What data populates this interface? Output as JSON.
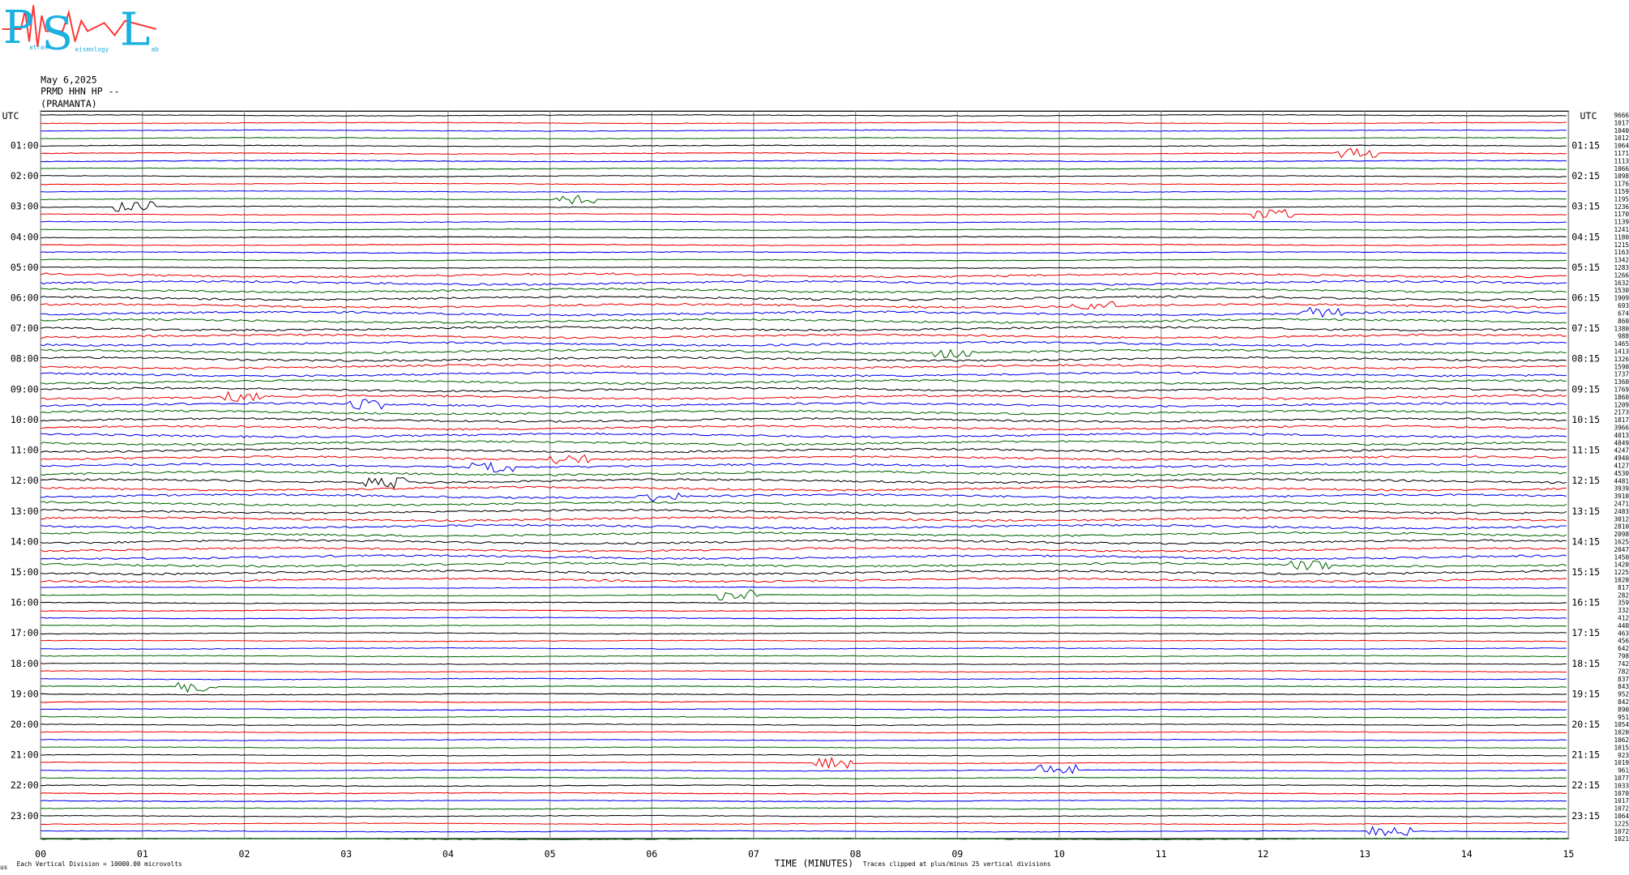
{
  "header": {
    "logo": {
      "letters": [
        "P",
        "S",
        "L"
      ],
      "words": [
        "atras",
        "eismology",
        "ab"
      ]
    },
    "date": "May 6,2025",
    "station": "PRMD HHN HP --",
    "site": "(PRAMANTA)"
  },
  "left_axis": {
    "title": "UTC",
    "labels": [
      "01:00",
      "02:00",
      "03:00",
      "04:00",
      "05:00",
      "06:00",
      "07:00",
      "08:00",
      "09:00",
      "10:00",
      "11:00",
      "12:00",
      "13:00",
      "14:00",
      "15:00",
      "16:00",
      "17:00",
      "18:00",
      "19:00",
      "20:00",
      "21:00",
      "22:00",
      "23:00"
    ]
  },
  "right_axis": {
    "title": "UTC",
    "labels": [
      "01:15",
      "02:15",
      "03:15",
      "04:15",
      "05:15",
      "06:15",
      "07:15",
      "08:15",
      "09:15",
      "10:15",
      "11:15",
      "12:15",
      "13:15",
      "14:15",
      "15:15",
      "16:15",
      "17:15",
      "18:15",
      "19:15",
      "20:15",
      "21:15",
      "22:15",
      "23:15"
    ]
  },
  "trace_numbers": [
    "9666",
    "1017",
    "1040",
    "1012",
    "1064",
    "1171",
    "1113",
    "1066",
    "1098",
    "1176",
    "1159",
    "1195",
    "1236",
    "1170",
    "1139",
    "1241",
    "1180",
    "1215",
    "1163",
    "1342",
    "1283",
    "1266",
    "1632",
    "1530",
    "1909",
    "693",
    "674",
    "860",
    "1380",
    "988",
    "1465",
    "1413",
    "1326",
    "1590",
    "1737",
    "1360",
    "1769",
    "1860",
    "1209",
    "2173",
    "1817",
    "3966",
    "4013",
    "4849",
    "4247",
    "4940",
    "4127",
    "4530",
    "4481",
    "3939",
    "3910",
    "2471",
    "2483",
    "3012",
    "2810",
    "2098",
    "1625",
    "2047",
    "1450",
    "1420",
    "1225",
    "1020",
    "817",
    "282",
    "359",
    "332",
    "412",
    "440",
    "463",
    "456",
    "642",
    "798",
    "742",
    "782",
    "837",
    "843",
    "952",
    "842",
    "890",
    "951",
    "1054",
    "1020",
    "1062",
    "1015",
    "923",
    "1019",
    "961",
    "1077",
    "1033",
    "1070",
    "1017",
    "1072",
    "1064",
    "1225",
    "1072",
    "1021"
  ],
  "x_axis": {
    "labels": [
      "00",
      "01",
      "02",
      "03",
      "04",
      "05",
      "06",
      "07",
      "08",
      "09",
      "10",
      "11",
      "12",
      "13",
      "14",
      "15"
    ],
    "title": "TIME (MINUTES)"
  },
  "footer": {
    "corner": "us",
    "scale": "Each Vertical Division = 10000.00 microvolts",
    "clip": "Traces clipped at plus/minus 25 vertical divisions"
  }
}
